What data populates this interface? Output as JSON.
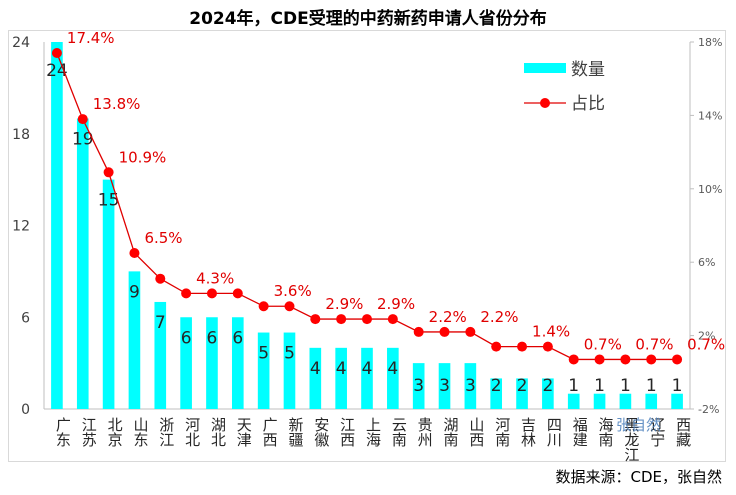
{
  "chart_data": {
    "type": "bar",
    "title": "2024年，CDE受理的中药新药申请人省份分布",
    "categories": [
      "广东",
      "江苏",
      "北京",
      "山东",
      "浙江",
      "河北",
      "湖北",
      "天津",
      "广西",
      "新疆",
      "安徽",
      "江西",
      "上海",
      "云南",
      "贵州",
      "湖南",
      "山西",
      "河南",
      "吉林",
      "四川",
      "福建",
      "海南",
      "黑龙江",
      "辽宁",
      "西藏"
    ],
    "series": [
      {
        "name": "数量",
        "type": "bar",
        "axis": "left",
        "color": "#00ffff",
        "values": [
          24,
          19,
          15,
          9,
          7,
          6,
          6,
          6,
          5,
          5,
          4,
          4,
          4,
          4,
          3,
          3,
          3,
          2,
          2,
          2,
          1,
          1,
          1,
          1,
          1
        ]
      },
      {
        "name": "占比",
        "type": "line",
        "axis": "right",
        "color": "#e00000",
        "values": [
          17.4,
          13.8,
          10.9,
          6.5,
          5.1,
          4.3,
          4.3,
          4.3,
          3.6,
          3.6,
          2.9,
          2.9,
          2.9,
          2.9,
          2.2,
          2.2,
          2.2,
          1.4,
          1.4,
          1.4,
          0.7,
          0.7,
          0.7,
          0.7,
          0.7
        ]
      }
    ],
    "point_labels": [
      "17.4%",
      "13.8%",
      "10.9%",
      "6.5%",
      "",
      "4.3%",
      "",
      "",
      "3.6%",
      "",
      "2.9%",
      "",
      "2.9%",
      "",
      "2.2%",
      "",
      "2.2%",
      "",
      "1.4%",
      "",
      "0.7%",
      "",
      "0.7%",
      "",
      "0.7%"
    ],
    "left_axis": {
      "ticks": [
        "0",
        "6",
        "12",
        "18",
        "24"
      ],
      "ylim": [
        0,
        24
      ]
    },
    "right_axis": {
      "ticks": [
        "-2%",
        "2%",
        "6%",
        "10%",
        "14%",
        "18%"
      ],
      "ylim": [
        -2,
        18
      ]
    },
    "legend": {
      "position": "top-right",
      "bar_label": "数量",
      "line_label": "占比"
    },
    "grid": false
  },
  "source_note": "数据来源：CDE，张自然",
  "watermark": "张自然"
}
